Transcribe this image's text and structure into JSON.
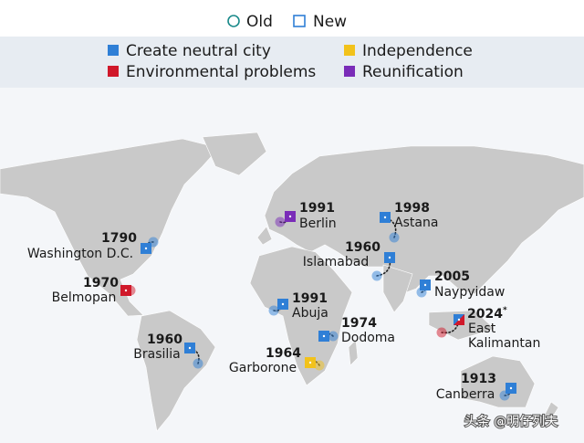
{
  "legend_shape": [
    "Old",
    "New"
  ],
  "legend_reason": [
    {
      "label": "Create neutral city",
      "color": "#2f7fd6"
    },
    {
      "label": "Independence",
      "color": "#f2c21b"
    },
    {
      "label": "Environmental problems",
      "color": "#d0182a"
    },
    {
      "label": "Reunification",
      "color": "#7a2cb8"
    }
  ],
  "cities": [
    {
      "year": "1790",
      "name": [
        "Washington D.C."
      ],
      "reasons": [
        "Create neutral city"
      ]
    },
    {
      "year": "1970",
      "name": [
        "Belmopan"
      ],
      "reasons": [
        "Environmental problems"
      ]
    },
    {
      "year": "1960",
      "name": [
        "Brasilia"
      ],
      "reasons": [
        "Create neutral city"
      ]
    },
    {
      "year": "1991",
      "name": [
        "Berlin"
      ],
      "reasons": [
        "Reunification"
      ]
    },
    {
      "year": "1998",
      "name": [
        "Astana"
      ],
      "reasons": [
        "Create neutral city"
      ]
    },
    {
      "year": "1960",
      "name": [
        "Islamabad"
      ],
      "reasons": [
        "Create neutral city"
      ]
    },
    {
      "year": "1991",
      "name": [
        "Abuja"
      ],
      "reasons": [
        "Create neutral city"
      ]
    },
    {
      "year": "1974",
      "name": [
        "Dodoma"
      ],
      "reasons": [
        "Create neutral city"
      ]
    },
    {
      "year": "1964",
      "name": [
        "Garborone"
      ],
      "reasons": [
        "Independence"
      ]
    },
    {
      "year": "2005",
      "name": [
        "Naypyidaw"
      ],
      "reasons": [
        "Create neutral city"
      ]
    },
    {
      "year": "2024",
      "note": "*",
      "name": [
        "East",
        "Kalimantan"
      ],
      "reasons": [
        "Create neutral city",
        "Environmental problems"
      ]
    },
    {
      "year": "1913",
      "name": [
        "Canberra"
      ],
      "reasons": [
        "Create neutral city"
      ]
    }
  ],
  "watermark": "头条 @明仔列夫"
}
